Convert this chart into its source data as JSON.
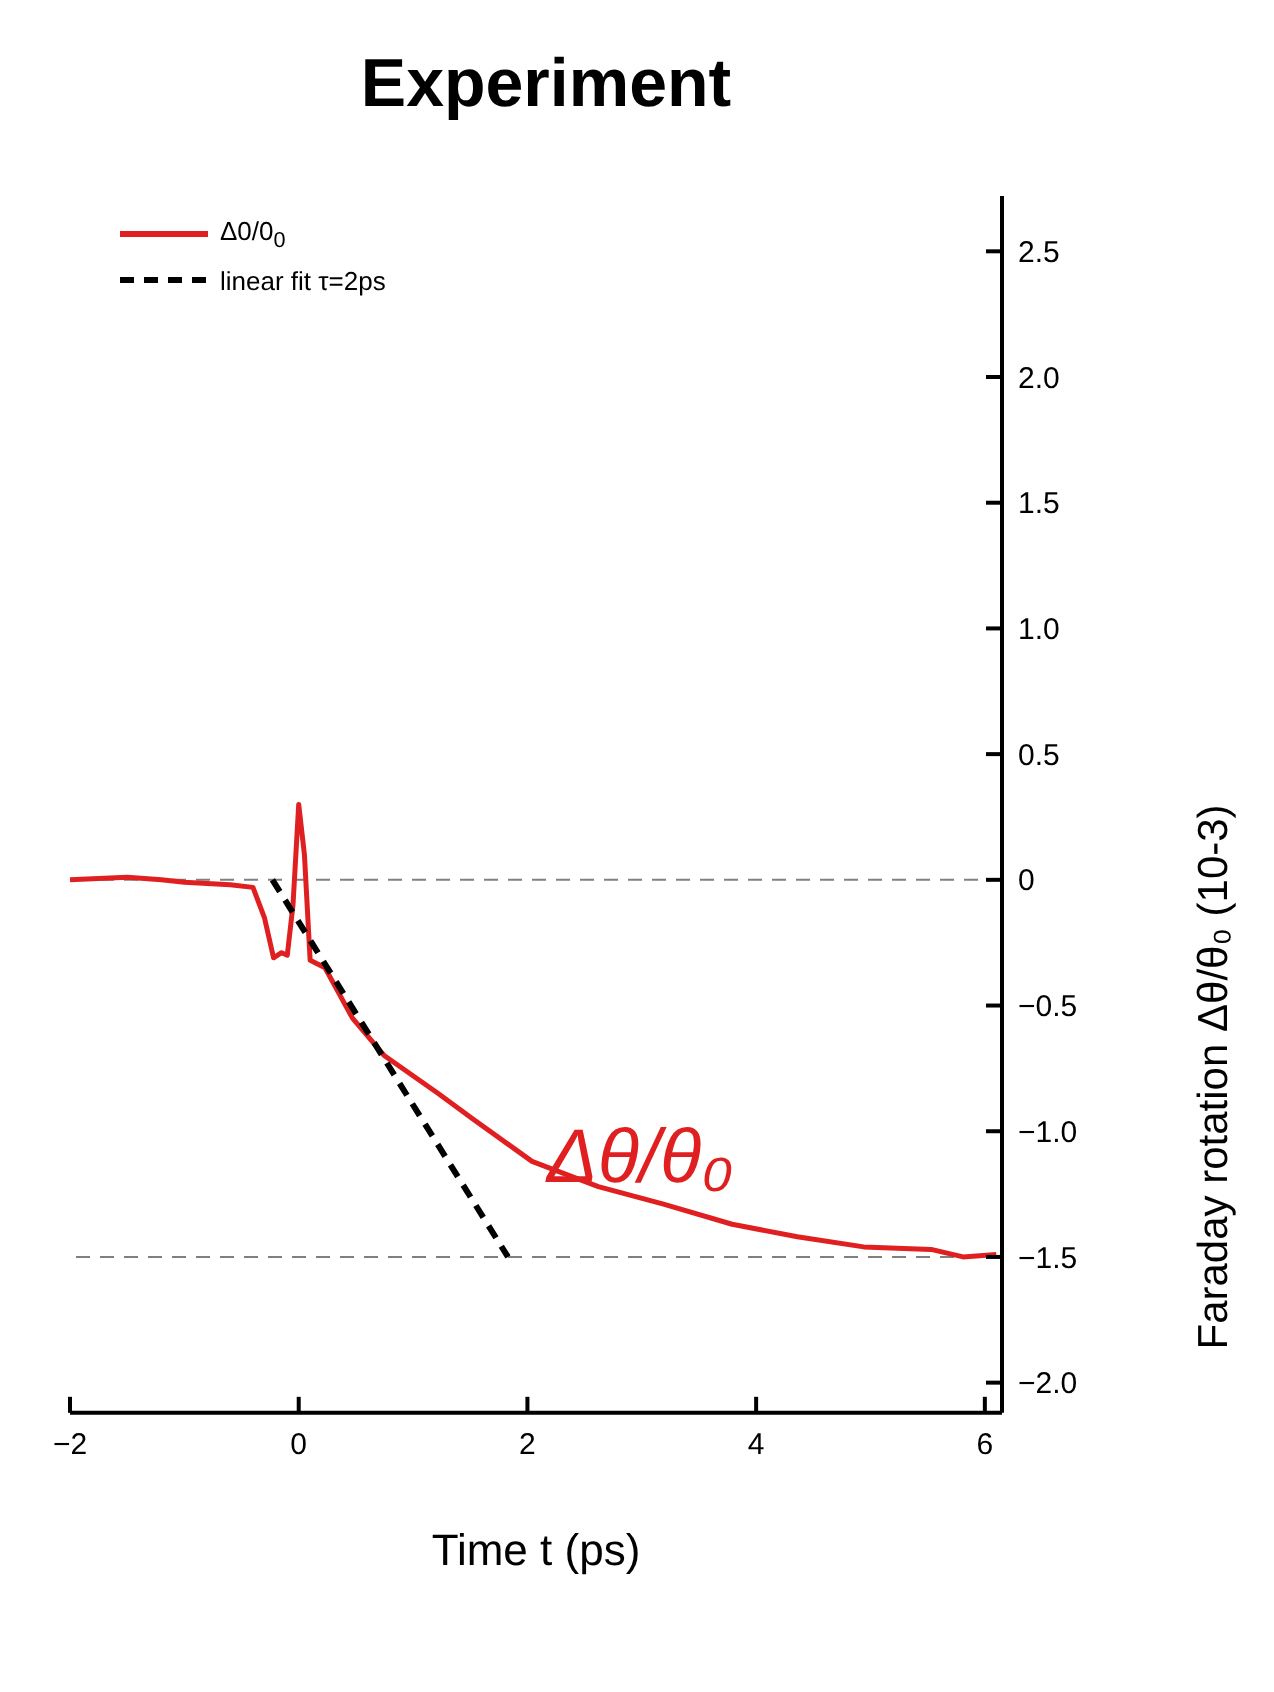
{
  "chart_data": {
    "type": "line",
    "title": "Experiment",
    "xlabel": "Time t (ps)",
    "ylabel": "Faraday rotation Δθ/θ₀  (10-3)",
    "xlim": [
      -2,
      6.15
    ],
    "xticks": [
      {
        "value": -2,
        "label": "−2"
      },
      0,
      2,
      4,
      6
    ],
    "ylim": [
      -2.12,
      2.72
    ],
    "yticks": [
      {
        "value": -2,
        "label": "−2.0"
      },
      {
        "value": -1.5,
        "label": "−1.5"
      },
      {
        "value": -1,
        "label": "−1.0"
      },
      {
        "value": -0.5,
        "label": "−0.5"
      },
      0,
      0.5,
      {
        "value": 1,
        "label": "1.0"
      },
      1.5,
      {
        "value": 2,
        "label": "2.0"
      },
      2.5
    ],
    "legend": "top left",
    "grid": false,
    "marker": "none",
    "series": [
      {
        "name": "Δ0/0$_{0}$",
        "color": "#e02020",
        "line_style": "solid",
        "x": [
          -2,
          -1.5,
          -1.2,
          -1.0,
          -0.6,
          -0.4,
          -0.3,
          -0.22,
          -0.15,
          -0.1,
          -0.05,
          0,
          0.05,
          0.1,
          0.23,
          0.47,
          0.75,
          1.22,
          1.52,
          2.04,
          2.62,
          3.19,
          3.79,
          4.36,
          4.94,
          5.53,
          5.81,
          6.1
        ],
        "values": [
          0,
          0.01,
          0,
          -0.01,
          -0.02,
          -0.03,
          -0.15,
          -0.31,
          -0.29,
          -0.3,
          -0.1,
          0.3,
          0.1,
          -0.32,
          -0.35,
          -0.55,
          -0.7,
          -0.85,
          -0.95,
          -1.12,
          -1.22,
          -1.29,
          -1.37,
          -1.42,
          -1.46,
          -1.47,
          -1.5,
          -1.49
        ]
      },
      {
        "name": "linear fit  τ=2ps",
        "color": "#000000",
        "line_style": "dashed",
        "x": [
          -0.23,
          1.83
        ],
        "values": [
          0,
          -1.5
        ]
      }
    ],
    "ref_lines": [
      {
        "axis": "y",
        "value": 0,
        "color": "#808080",
        "line_style": "dashed"
      },
      {
        "axis": "y",
        "value": -1.5,
        "color": "#808080",
        "line_style": "dashed"
      }
    ],
    "annotations": [
      "Δθ/θ₀"
    ]
  }
}
